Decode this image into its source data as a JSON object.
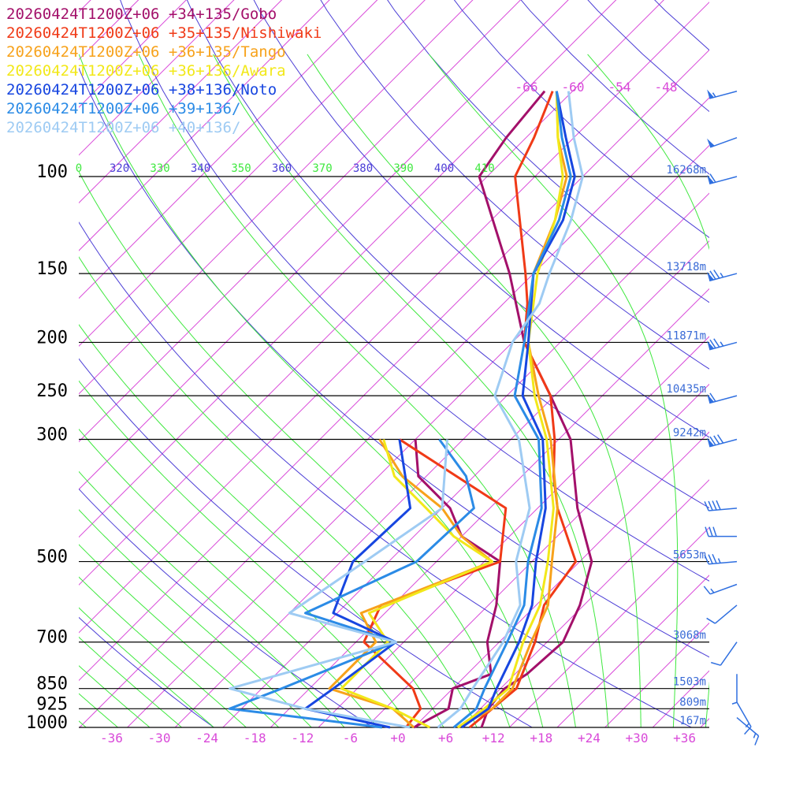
{
  "chart_data": {
    "type": "skew-t",
    "legend": [
      {
        "name": "20260424T1200Z+06 +34+135/Gobo",
        "color": "#a3106a"
      },
      {
        "name": "20260424T1200Z+06 +35+135/Nishiwaki",
        "color": "#f03a17"
      },
      {
        "name": "20260424T1200Z+06 +36+135/Tango",
        "color": "#f7a21b"
      },
      {
        "name": "20260424T1200Z+06 +36+136/Awara",
        "color": "#f2e81a"
      },
      {
        "name": "20260424T1200Z+06 +38+136/Noto",
        "color": "#1746e0"
      },
      {
        "name": "20260424T1200Z+06 +39+136/",
        "color": "#2b8be6"
      },
      {
        "name": "20260424T1200Z+06 +40+136/",
        "color": "#9ecbf3"
      }
    ],
    "pressure_levels": [
      {
        "p": 100,
        "label": "100",
        "height": "16268m"
      },
      {
        "p": 150,
        "label": "150",
        "height": "13718m"
      },
      {
        "p": 200,
        "label": "200",
        "height": "11871m"
      },
      {
        "p": 250,
        "label": "250",
        "height": "10435m"
      },
      {
        "p": 300,
        "label": "300",
        "height": "9242m"
      },
      {
        "p": 500,
        "label": "500",
        "height": "5653m"
      },
      {
        "p": 700,
        "label": "700",
        "height": "3068m"
      },
      {
        "p": 850,
        "label": "850",
        "height": "1503m"
      },
      {
        "p": 925,
        "label": "925",
        "height": "809m"
      },
      {
        "p": 1000,
        "label": "1000",
        "height": "167m"
      }
    ],
    "temperature_ticks": [
      -36,
      -30,
      -24,
      -18,
      -12,
      -6,
      0,
      6,
      12,
      18,
      24,
      30,
      36
    ],
    "temperature_tick_labels": [
      "-36",
      "-30",
      "-24",
      "-18",
      "-12",
      "-6",
      "+0",
      "+6",
      "+12",
      "+18",
      "+24",
      "+30",
      "+36"
    ],
    "upper_temperature_labels": [
      "-66",
      "-60",
      "-54",
      "-48"
    ],
    "theta_labels": [
      "0",
      "320",
      "330",
      "340",
      "350",
      "360",
      "370",
      "380",
      "390",
      "400",
      "410"
    ],
    "colors": {
      "isotherm": "#d94ad9",
      "dry_adiabat": "#4b3ed6",
      "moist_adiabat": "#3ee83e",
      "isobar": "#000000",
      "barb": "#2f6fe0"
    },
    "series": [
      {
        "name": "20260424T1200Z+06 +34+135/Gobo",
        "color": "#a3106a",
        "temperature": [
          [
            1000,
            10.5
          ],
          [
            925,
            9.0
          ],
          [
            850,
            8.5
          ],
          [
            800,
            9.5
          ],
          [
            700,
            10.0
          ],
          [
            600,
            7.5
          ],
          [
            500,
            3.5
          ],
          [
            400,
            -5.0
          ],
          [
            300,
            -14.5
          ],
          [
            250,
            -22.5
          ],
          [
            200,
            -32.5
          ],
          [
            150,
            -43.0
          ],
          [
            100,
            -59.0
          ],
          [
            85,
            -60.5
          ],
          [
            70,
            -61.5
          ]
        ],
        "dewpoint": [
          [
            1000,
            2.0
          ],
          [
            925,
            4.0
          ],
          [
            850,
            2.0
          ],
          [
            800,
            5.0
          ],
          [
            700,
            0.5
          ],
          [
            600,
            -3.0
          ],
          [
            500,
            -8.0
          ],
          [
            450,
            -16.0
          ],
          [
            400,
            -21.0
          ],
          [
            350,
            -29.0
          ],
          [
            300,
            -34.0
          ]
        ]
      },
      {
        "name": "20260424T1200Z+06 +35+135/Nishiwaki",
        "color": "#f03a17",
        "temperature": [
          [
            1000,
            9.0
          ],
          [
            925,
            9.5
          ],
          [
            850,
            10.0
          ],
          [
            700,
            6.5
          ],
          [
            600,
            3.0
          ],
          [
            500,
            1.5
          ],
          [
            400,
            -7.5
          ],
          [
            350,
            -12.0
          ],
          [
            300,
            -16.5
          ],
          [
            250,
            -22.5
          ],
          [
            200,
            -32.5
          ],
          [
            170,
            -37.0
          ],
          [
            150,
            -41.0
          ],
          [
            100,
            -54.5
          ],
          [
            85,
            -57.0
          ],
          [
            70,
            -60.5
          ]
        ],
        "dewpoint": [
          [
            1000,
            1.0
          ],
          [
            925,
            0.5
          ],
          [
            850,
            -3.0
          ],
          [
            700,
            -15.0
          ],
          [
            600,
            -17.5
          ],
          [
            500,
            -8.0
          ],
          [
            400,
            -14.0
          ],
          [
            300,
            -36.0
          ]
        ]
      },
      {
        "name": "20260424T1200Z+06 +36+135/Tango",
        "color": "#f7a21b",
        "temperature": [
          [
            1000,
            7.5
          ],
          [
            925,
            9.5
          ],
          [
            850,
            9.5
          ],
          [
            700,
            6.0
          ],
          [
            600,
            3.5
          ],
          [
            500,
            -1.5
          ],
          [
            400,
            -7.5
          ],
          [
            300,
            -17.0
          ],
          [
            250,
            -24.0
          ],
          [
            200,
            -32.0
          ],
          [
            150,
            -40.0
          ],
          [
            120,
            -44.0
          ],
          [
            100,
            -48.0
          ],
          [
            85,
            -54.0
          ],
          [
            70,
            -60.0
          ]
        ],
        "dewpoint": [
          [
            1000,
            2.0
          ],
          [
            925,
            -3.0
          ],
          [
            850,
            -13.5
          ],
          [
            700,
            -13.5
          ],
          [
            620,
            -19.0
          ],
          [
            500,
            -9.0
          ],
          [
            450,
            -16.0
          ],
          [
            400,
            -22.0
          ],
          [
            350,
            -31.0
          ],
          [
            300,
            -38.5
          ]
        ]
      },
      {
        "name": "20260424T1200Z+06 +36+136/Awara",
        "color": "#f2e81a",
        "temperature": [
          [
            1000,
            7.5
          ],
          [
            925,
            8.5
          ],
          [
            850,
            9.0
          ],
          [
            700,
            5.0
          ],
          [
            600,
            2.5
          ],
          [
            500,
            -2.0
          ],
          [
            400,
            -8.0
          ],
          [
            300,
            -17.5
          ],
          [
            250,
            -24.5
          ],
          [
            200,
            -32.0
          ],
          [
            150,
            -39.5
          ],
          [
            120,
            -44.0
          ],
          [
            100,
            -48.5
          ],
          [
            85,
            -54.0
          ],
          [
            70,
            -60.0
          ]
        ],
        "dewpoint": [
          [
            1000,
            4.0
          ],
          [
            925,
            -3.0
          ],
          [
            850,
            -12.0
          ],
          [
            700,
            -12.0
          ],
          [
            620,
            -18.0
          ],
          [
            500,
            -9.0
          ],
          [
            450,
            -17.0
          ],
          [
            400,
            -24.0
          ],
          [
            350,
            -32.0
          ],
          [
            300,
            -38.0
          ]
        ]
      },
      {
        "name": "20260424T1200Z+06 +38+136/Noto",
        "color": "#1746e0",
        "temperature": [
          [
            1000,
            8.0
          ],
          [
            925,
            9.0
          ],
          [
            850,
            7.5
          ],
          [
            700,
            4.5
          ],
          [
            600,
            1.5
          ],
          [
            500,
            -3.5
          ],
          [
            400,
            -9.0
          ],
          [
            300,
            -18.0
          ],
          [
            250,
            -26.0
          ],
          [
            200,
            -32.0
          ],
          [
            150,
            -40.0
          ],
          [
            120,
            -43.0
          ],
          [
            100,
            -47.0
          ],
          [
            85,
            -53.0
          ],
          [
            70,
            -60.0
          ]
        ],
        "dewpoint": [
          [
            1000,
            -1.0
          ],
          [
            925,
            -14.0
          ],
          [
            850,
            -13.0
          ],
          [
            700,
            -11.0
          ],
          [
            620,
            -22.5
          ],
          [
            500,
            -26.5
          ],
          [
            400,
            -26.0
          ],
          [
            300,
            -36.0
          ]
        ]
      },
      {
        "name": "20260424T1200Z+06 +39+136/",
        "color": "#2b8be6",
        "temperature": [
          [
            1000,
            7.0
          ],
          [
            925,
            7.5
          ],
          [
            850,
            6.0
          ],
          [
            700,
            3.0
          ],
          [
            600,
            0.5
          ],
          [
            500,
            -4.5
          ],
          [
            400,
            -9.5
          ],
          [
            300,
            -18.5
          ],
          [
            250,
            -27.0
          ],
          [
            200,
            -32.5
          ],
          [
            150,
            -40.0
          ],
          [
            120,
            -43.5
          ],
          [
            100,
            -47.5
          ],
          [
            85,
            -53.5
          ],
          [
            70,
            -60.0
          ]
        ],
        "dewpoint": [
          [
            1000,
            -2.0
          ],
          [
            925,
            -23.5
          ],
          [
            850,
            -19.5
          ],
          [
            700,
            -11.0
          ],
          [
            620,
            -26.0
          ],
          [
            500,
            -18.5
          ],
          [
            400,
            -18.0
          ],
          [
            350,
            -23.0
          ],
          [
            300,
            -31.0
          ]
        ]
      },
      {
        "name": "20260424T1200Z+06 +40+136/",
        "color": "#9ecbf3",
        "temperature": [
          [
            1000,
            5.0
          ],
          [
            925,
            5.5
          ],
          [
            850,
            4.5
          ],
          [
            700,
            2.5
          ],
          [
            600,
            0.0
          ],
          [
            500,
            -6.0
          ],
          [
            400,
            -11.0
          ],
          [
            300,
            -21.0
          ],
          [
            250,
            -29.5
          ],
          [
            200,
            -34.0
          ],
          [
            170,
            -35.5
          ],
          [
            150,
            -38.0
          ],
          [
            120,
            -42.0
          ],
          [
            100,
            -46.0
          ],
          [
            85,
            -52.0
          ],
          [
            70,
            -58.5
          ]
        ],
        "dewpoint": [
          [
            1000,
            1.5
          ],
          [
            925,
            -14.0
          ],
          [
            850,
            -26.0
          ],
          [
            700,
            -11.0
          ],
          [
            620,
            -28.0
          ],
          [
            500,
            -25.0
          ],
          [
            400,
            -22.0
          ],
          [
            300,
            -30.0
          ]
        ]
      }
    ],
    "wind_barbs": [
      {
        "p": 70,
        "dir": 255,
        "speed": 55
      },
      {
        "p": 85,
        "dir": 250,
        "speed": 50
      },
      {
        "p": 100,
        "dir": 255,
        "speed": 60
      },
      {
        "p": 150,
        "dir": 255,
        "speed": 75
      },
      {
        "p": 200,
        "dir": 255,
        "speed": 75
      },
      {
        "p": 250,
        "dir": 255,
        "speed": 60
      },
      {
        "p": 300,
        "dir": 255,
        "speed": 80
      },
      {
        "p": 400,
        "dir": 265,
        "speed": 40
      },
      {
        "p": 450,
        "dir": 270,
        "speed": 30
      },
      {
        "p": 500,
        "dir": 265,
        "speed": 35
      },
      {
        "p": 550,
        "dir": 250,
        "speed": 15
      },
      {
        "p": 600,
        "dir": 230,
        "speed": 10
      },
      {
        "p": 700,
        "dir": 215,
        "speed": 10
      },
      {
        "p": 800,
        "dir": 180,
        "speed": 5
      },
      {
        "p": 900,
        "dir": 150,
        "speed": 15
      },
      {
        "p": 960,
        "dir": 130,
        "speed": 15
      }
    ]
  }
}
